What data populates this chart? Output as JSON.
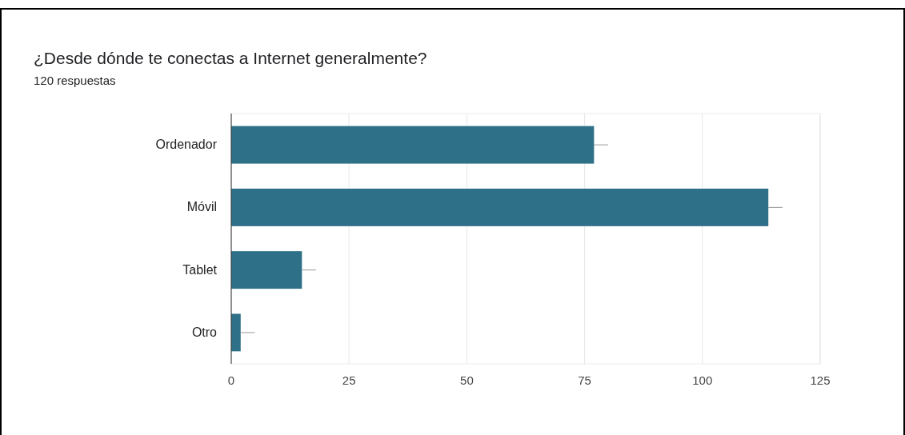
{
  "chart_data": {
    "type": "bar",
    "orientation": "horizontal",
    "title": "¿Desde dónde te conectas a Internet generalmente?",
    "subtitle": "120 respuestas",
    "categories": [
      "Ordenador",
      "Móvil",
      "Tablet",
      "Otro"
    ],
    "values": [
      77,
      114,
      15,
      2
    ],
    "errors": [
      [
        77,
        80
      ],
      [
        114,
        117
      ],
      [
        15,
        18
      ],
      [
        2,
        5
      ]
    ],
    "color": "#2e7087",
    "xlim": [
      0,
      125
    ],
    "xticks": [
      0,
      25,
      50,
      75,
      100,
      125
    ],
    "grid": "x"
  }
}
